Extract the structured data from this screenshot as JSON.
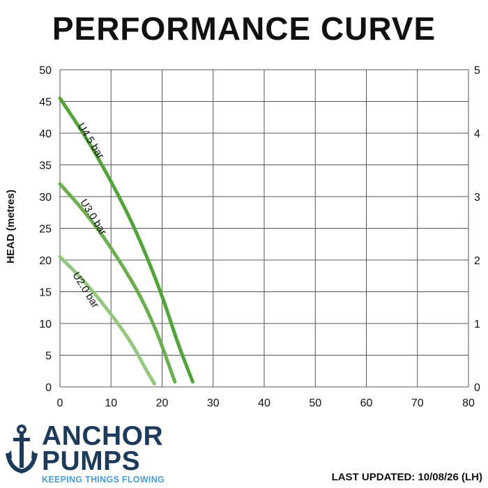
{
  "title": "PERFORMANCE CURVE",
  "logo": {
    "line1": "ANCHOR",
    "line2": "PUMPS",
    "tagline": "KEEPING THINGS FLOWING",
    "icon": "anchor-icon",
    "color": "#1d3a5c",
    "tagline_color": "#4b9bd4"
  },
  "last_updated": "LAST UPDATED: 10/08/26 (LH)",
  "chart_data": {
    "type": "line",
    "ylabel": "HEAD (metres)",
    "xlabel": "",
    "xlim": [
      0,
      80
    ],
    "ylim": [
      0,
      50
    ],
    "x_ticks": [
      0,
      10,
      20,
      30,
      40,
      50,
      60,
      70,
      80
    ],
    "y_ticks": [
      0,
      5,
      10,
      15,
      20,
      25,
      30,
      35,
      40,
      45,
      50
    ],
    "y2_ticks": [
      0,
      1,
      2,
      3,
      4,
      5
    ],
    "y2lim": [
      0,
      5
    ],
    "grid": true,
    "series": [
      {
        "name": "U4.5 bar",
        "color": "#52a43a",
        "points": [
          [
            0,
            45.5
          ],
          [
            5,
            39.5
          ],
          [
            10,
            32.5
          ],
          [
            15,
            24.5
          ],
          [
            20,
            14.5
          ],
          [
            23,
            7
          ],
          [
            26,
            0.8
          ]
        ]
      },
      {
        "name": "U3.0 bar",
        "color": "#6cae4e",
        "points": [
          [
            0,
            32
          ],
          [
            5,
            27.5
          ],
          [
            10,
            22
          ],
          [
            15,
            15.5
          ],
          [
            18,
            10.5
          ],
          [
            20,
            6.5
          ],
          [
            22.5,
            0.8
          ]
        ]
      },
      {
        "name": "U2.0 bar",
        "color": "#96c77e",
        "points": [
          [
            0,
            20.5
          ],
          [
            5,
            16.5
          ],
          [
            10,
            11.5
          ],
          [
            14,
            7
          ],
          [
            17,
            2.5
          ],
          [
            18.5,
            0.5
          ]
        ]
      }
    ]
  }
}
